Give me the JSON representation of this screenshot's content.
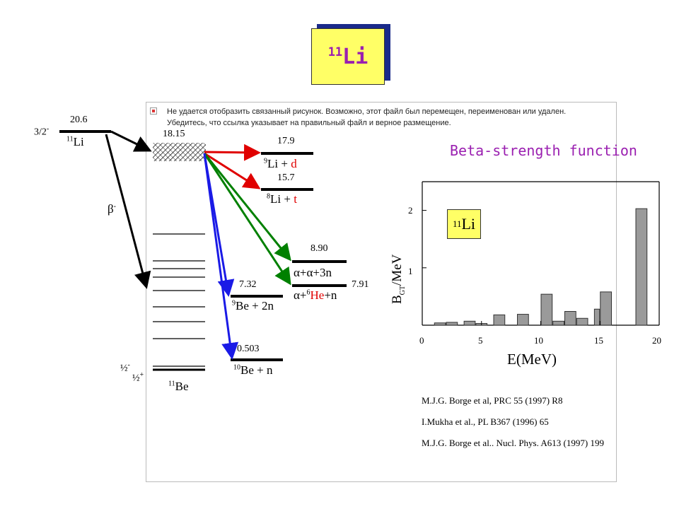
{
  "slide_title": {
    "mass": "11",
    "element": "Li"
  },
  "broken_image_message": "Не удается отобразить связанный рисунок. Возможно, этот файл был перемещен, переименован или удален. Убедитесь, что ссылка указывает на правильный файл и верное размещение.",
  "parent": {
    "spin": "3/2",
    "spin_parity": "-",
    "energy": "20.6",
    "mass": "11",
    "element": "Li"
  },
  "decay_label": {
    "symbol": "β",
    "sign": "-"
  },
  "daughter": {
    "mass": "11",
    "element": "Be",
    "state_energy": "18.15",
    "gs_spin_a": "½",
    "gs_parity_a": "-",
    "gs_spin_b": "½",
    "gs_parity_b": "+"
  },
  "channels": [
    {
      "threshold": "17.9",
      "mass": "9",
      "nucleus": "Li",
      "plus": " + ",
      "particle": "d",
      "particle_color": "#e00000"
    },
    {
      "threshold": "15.7",
      "mass": "8",
      "nucleus": "Li",
      "plus": " + ",
      "particle": "t",
      "particle_color": "#e00000"
    },
    {
      "threshold": "8.90",
      "text": "α+α+3n"
    },
    {
      "threshold": "7.91",
      "pre": "α+",
      "mass": "6",
      "nucleus": "He",
      "post": "+n",
      "nucleus_color": "#e00000"
    },
    {
      "threshold": "7.32",
      "mass": "9",
      "nucleus": "Be",
      "rest": " + 2n"
    },
    {
      "threshold": "0.503",
      "mass": "10",
      "nucleus": "Be",
      "rest": " + n"
    }
  ],
  "arrow_colors": {
    "black": "#000000",
    "red": "#e00000",
    "green": "#008000",
    "blue": "#1a1ae6"
  },
  "chart_data": {
    "type": "bar",
    "title": "Beta-strength function",
    "inset_label": {
      "mass": "11",
      "element": "Li"
    },
    "xlabel": "E(MeV)",
    "ylabel_main": "B",
    "ylabel_sub": "GT",
    "ylabel_rest": "/MeV",
    "xlim": [
      0,
      20
    ],
    "ylim": [
      0,
      2.5
    ],
    "xticks": [
      "0",
      "5",
      "10",
      "15",
      "20"
    ],
    "yticks": [
      "1",
      "2"
    ],
    "bars": [
      {
        "x0": 1.0,
        "x1": 2.0,
        "value": 0.04
      },
      {
        "x0": 2.0,
        "x1": 3.0,
        "value": 0.05
      },
      {
        "x0": 3.5,
        "x1": 4.5,
        "value": 0.07
      },
      {
        "x0": 4.5,
        "x1": 5.5,
        "value": 0.03
      },
      {
        "x0": 6.0,
        "x1": 7.0,
        "value": 0.18
      },
      {
        "x0": 8.0,
        "x1": 9.0,
        "value": 0.19
      },
      {
        "x0": 10.0,
        "x1": 11.0,
        "value": 0.54
      },
      {
        "x0": 11.0,
        "x1": 12.0,
        "value": 0.07
      },
      {
        "x0": 12.0,
        "x1": 13.0,
        "value": 0.24
      },
      {
        "x0": 13.0,
        "x1": 14.0,
        "value": 0.12
      },
      {
        "x0": 14.5,
        "x1": 15.0,
        "value": 0.28
      },
      {
        "x0": 15.0,
        "x1": 16.0,
        "value": 0.58
      },
      {
        "x0": 18.0,
        "x1": 19.0,
        "value": 2.03
      }
    ]
  },
  "references": [
    "M.J.G. Borge et al, PRC 55 (1997) R8",
    "I.Mukha et al., PL B367 (1996) 65",
    "M.J.G. Borge et al.. Nucl. Phys. A613 (1997) 199"
  ]
}
